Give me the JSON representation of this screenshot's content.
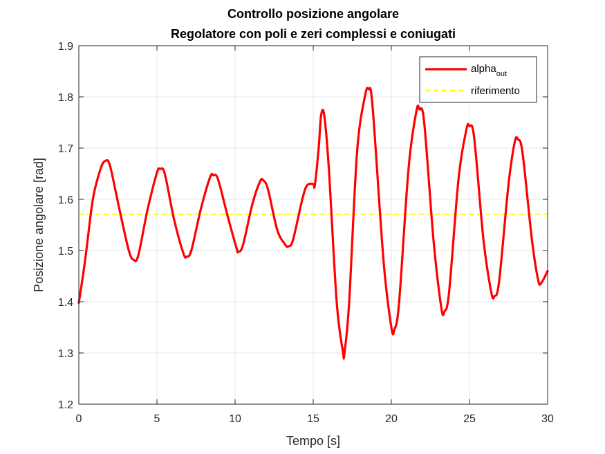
{
  "chart_data": {
    "type": "line",
    "title": "Controllo posizione angolare",
    "subtitle": "Regolatore con poli e zeri complessi e coniugati",
    "xlabel": "Tempo [s]",
    "ylabel": "Posizione angolare [rad]",
    "xlim": [
      0,
      30
    ],
    "ylim": [
      1.2,
      1.9
    ],
    "x_ticks": [
      "0",
      "5",
      "10",
      "15",
      "20",
      "25",
      "30"
    ],
    "y_ticks": [
      "1.2",
      "1.3",
      "1.4",
      "1.5",
      "1.6",
      "1.7",
      "1.8",
      "1.9"
    ],
    "grid": true,
    "legend_position": "top-right",
    "legend": {
      "alpha_base": "alpha",
      "alpha_sub": "out",
      "reference": "riferimento"
    },
    "series": [
      {
        "name": "alpha_out",
        "color": "#ff0000",
        "style": "solid",
        "x": [
          0,
          0.4,
          0.9,
          1.4,
          1.7,
          2.0,
          2.6,
          3.2,
          3.5,
          3.8,
          4.4,
          5.0,
          5.2,
          5.5,
          6.1,
          6.7,
          6.9,
          7.2,
          7.8,
          8.4,
          8.6,
          8.9,
          9.5,
          10.1,
          10.2,
          10.5,
          11.1,
          11.6,
          11.8,
          12.1,
          12.7,
          13.2,
          13.4,
          13.7,
          14.3,
          14.6,
          15.0,
          15.1,
          15.35,
          15.5,
          15.7,
          16.0,
          16.5,
          16.9,
          17.0,
          17.3,
          17.8,
          18.3,
          18.55,
          18.8,
          19.5,
          20.0,
          20.2,
          20.5,
          21.1,
          21.6,
          21.8,
          22.1,
          22.7,
          23.2,
          23.4,
          23.7,
          24.3,
          24.8,
          25.0,
          25.3,
          25.9,
          26.4,
          26.6,
          26.9,
          27.5,
          27.9,
          28.1,
          28.4,
          29.0,
          29.4,
          29.6,
          30.0
        ],
        "y": [
          1.398,
          1.48,
          1.6,
          1.66,
          1.675,
          1.665,
          1.58,
          1.5,
          1.482,
          1.49,
          1.58,
          1.652,
          1.659,
          1.65,
          1.56,
          1.494,
          1.488,
          1.5,
          1.58,
          1.643,
          1.647,
          1.64,
          1.57,
          1.504,
          1.498,
          1.51,
          1.59,
          1.635,
          1.637,
          1.62,
          1.54,
          1.512,
          1.508,
          1.52,
          1.6,
          1.627,
          1.63,
          1.627,
          1.7,
          1.763,
          1.765,
          1.66,
          1.4,
          1.303,
          1.3,
          1.4,
          1.69,
          1.8,
          1.815,
          1.78,
          1.48,
          1.35,
          1.346,
          1.4,
          1.66,
          1.772,
          1.776,
          1.75,
          1.52,
          1.388,
          1.381,
          1.42,
          1.64,
          1.736,
          1.743,
          1.72,
          1.52,
          1.418,
          1.411,
          1.44,
          1.63,
          1.712,
          1.717,
          1.69,
          1.52,
          1.442,
          1.437,
          1.46
        ]
      },
      {
        "name": "riferimento",
        "color": "#ffff00",
        "style": "dashed",
        "x": [
          0,
          30
        ],
        "y": [
          1.5708,
          1.5708
        ]
      }
    ]
  }
}
